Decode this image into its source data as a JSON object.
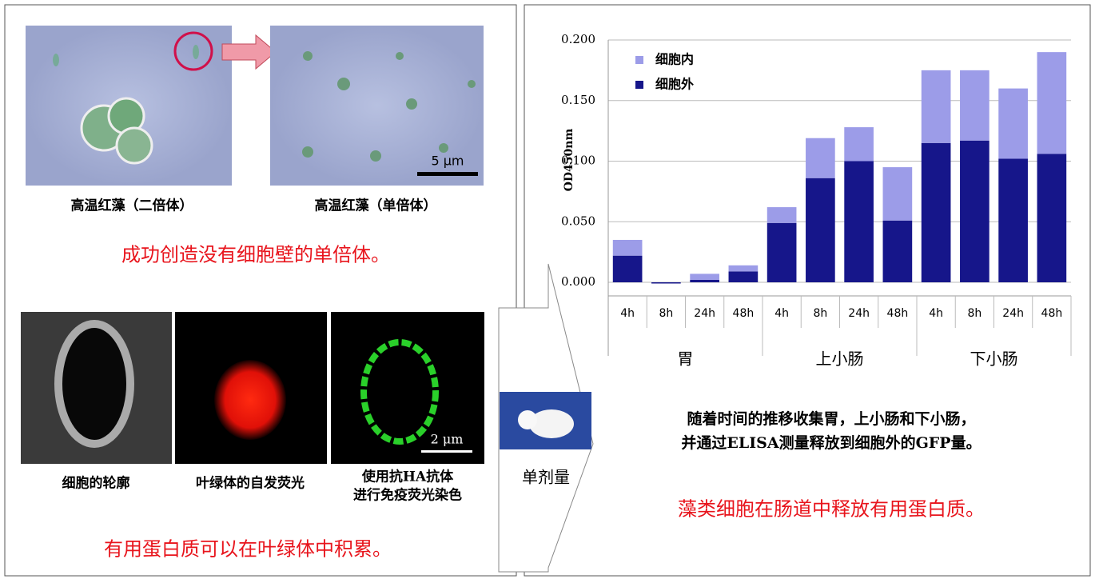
{
  "top_left": {
    "captions": [
      "高温红藻（二倍体）",
      "高温红藻（单倍体）"
    ],
    "scale_bar": "5 μm",
    "headline": "成功创造没有细胞壁的单倍体。"
  },
  "bottom_left": {
    "caption_lines": [
      [
        "细胞的轮廓"
      ],
      [
        "叶绿体的自发荧光"
      ],
      [
        "使用抗HA抗体",
        "进行免疫荧光染色"
      ]
    ],
    "scale_bar": "2 μm",
    "headline": "有用蛋白质可以在叶绿体中积累。"
  },
  "dose_label": "单剂量",
  "right": {
    "description_lines": [
      "随着时间的推移收集胃，上小肠和下小肠，",
      "并通过ELISA测量释放到细胞外的GFP量。"
    ],
    "headline": "藻类细胞在肠道中释放有用蛋白质。"
  },
  "chart_data": {
    "type": "stacked_bar",
    "y_label": "OD450nm",
    "categories": [
      "4h",
      "8h",
      "24h",
      "48h",
      "4h",
      "8h",
      "24h",
      "48h",
      "4h",
      "8h",
      "24h",
      "48h"
    ],
    "groups": [
      "胃",
      "上小肠",
      "下小肠"
    ],
    "series": [
      {
        "name": "细胞外",
        "color": "#16168a",
        "values": [
          0.022,
          -0.001,
          0.002,
          0.009,
          0.049,
          0.086,
          0.1,
          0.051,
          0.115,
          0.117,
          0.102,
          0.106
        ]
      },
      {
        "name": "细胞内",
        "color": "#9c9ce8",
        "values": [
          0.013,
          0,
          0.005,
          0.005,
          0.013,
          0.033,
          0.028,
          0.044,
          0.06,
          0.058,
          0.058,
          0.084
        ]
      }
    ],
    "ylim": [
      0,
      0.2
    ],
    "yticks": [
      {
        "value": 0,
        "label": "0.000"
      },
      {
        "value": 0.05,
        "label": "0.050"
      },
      {
        "value": 0.1,
        "label": "0.100"
      },
      {
        "value": 0.15,
        "label": "0.150"
      },
      {
        "value": 0.2,
        "label": "0.200"
      }
    ],
    "grid": true,
    "legend": "top-left"
  }
}
